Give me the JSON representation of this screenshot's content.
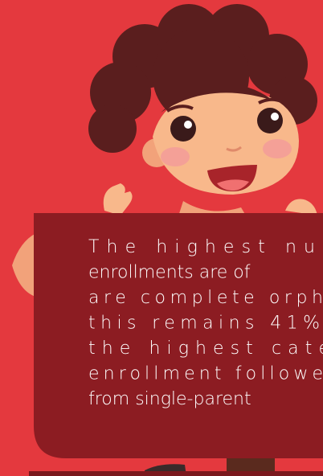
{
  "panel": {
    "lines": [
      "The highest nun",
      "enrollments are of",
      "are complete orph",
      "this remains 41%",
      "the highest cate",
      "enrollment followe",
      "from single-parent"
    ]
  }
}
